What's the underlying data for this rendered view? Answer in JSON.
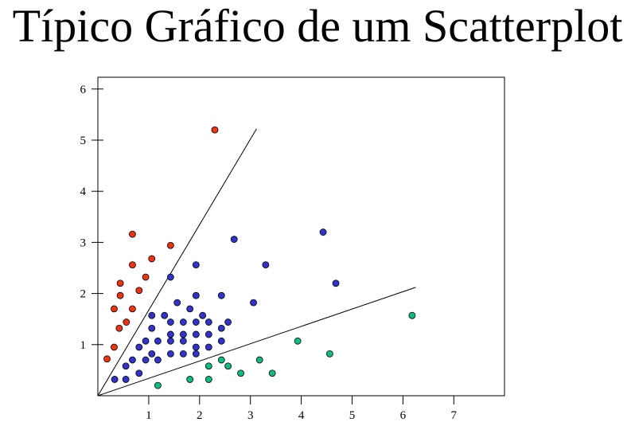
{
  "chart_data": {
    "type": "scatter",
    "title": "Típico Gráfico de um Scatterplot",
    "xlabel": "",
    "ylabel": "",
    "xlim": [
      0,
      8
    ],
    "ylim": [
      0,
      6.2
    ],
    "x_ticks": [
      1,
      2,
      3,
      4,
      5,
      6,
      7
    ],
    "y_ticks": [
      1,
      2,
      3,
      4,
      5,
      6
    ],
    "grid": false,
    "legend": "none",
    "series": [
      {
        "color": "#ee3311",
        "points": [
          [
            0.18,
            0.72
          ],
          [
            0.32,
            0.95
          ],
          [
            0.32,
            1.7
          ],
          [
            0.44,
            1.96
          ],
          [
            0.44,
            2.2
          ],
          [
            0.42,
            1.32
          ],
          [
            0.56,
            1.44
          ],
          [
            0.68,
            1.7
          ],
          [
            0.68,
            2.56
          ],
          [
            0.68,
            3.16
          ],
          [
            0.81,
            2.06
          ],
          [
            0.94,
            2.32
          ],
          [
            1.06,
            2.68
          ],
          [
            1.43,
            2.94
          ],
          [
            2.3,
            5.2
          ]
        ]
      },
      {
        "color": "#3333cc",
        "points": [
          [
            0.33,
            0.32
          ],
          [
            0.55,
            0.32
          ],
          [
            0.55,
            0.58
          ],
          [
            0.68,
            0.7
          ],
          [
            0.81,
            0.44
          ],
          [
            0.81,
            0.95
          ],
          [
            0.94,
            0.7
          ],
          [
            0.94,
            1.07
          ],
          [
            1.06,
            0.82
          ],
          [
            1.06,
            1.32
          ],
          [
            1.06,
            1.57
          ],
          [
            1.18,
            0.7
          ],
          [
            1.18,
            1.07
          ],
          [
            1.31,
            1.57
          ],
          [
            1.43,
            0.82
          ],
          [
            1.43,
            1.07
          ],
          [
            1.43,
            1.2
          ],
          [
            1.43,
            1.44
          ],
          [
            1.43,
            2.32
          ],
          [
            1.56,
            1.82
          ],
          [
            1.68,
            0.82
          ],
          [
            1.68,
            1.07
          ],
          [
            1.68,
            1.2
          ],
          [
            1.68,
            1.44
          ],
          [
            1.81,
            1.7
          ],
          [
            1.93,
            0.82
          ],
          [
            1.93,
            0.95
          ],
          [
            1.93,
            1.2
          ],
          [
            1.93,
            1.44
          ],
          [
            1.93,
            1.96
          ],
          [
            1.93,
            2.56
          ],
          [
            2.06,
            1.57
          ],
          [
            2.18,
            0.95
          ],
          [
            2.18,
            1.2
          ],
          [
            2.18,
            1.44
          ],
          [
            2.43,
            1.07
          ],
          [
            2.43,
            1.32
          ],
          [
            2.43,
            1.96
          ],
          [
            2.56,
            1.44
          ],
          [
            2.68,
            3.06
          ],
          [
            3.06,
            1.82
          ],
          [
            3.3,
            2.56
          ],
          [
            4.43,
            3.2
          ],
          [
            4.68,
            2.2
          ]
        ]
      },
      {
        "color": "#11bb88",
        "points": [
          [
            1.18,
            0.2
          ],
          [
            1.81,
            0.32
          ],
          [
            2.18,
            0.32
          ],
          [
            2.18,
            0.58
          ],
          [
            2.43,
            0.7
          ],
          [
            2.56,
            0.58
          ],
          [
            2.81,
            0.44
          ],
          [
            3.18,
            0.7
          ],
          [
            3.43,
            0.44
          ],
          [
            3.93,
            1.07
          ],
          [
            4.56,
            0.82
          ],
          [
            6.18,
            1.57
          ]
        ]
      }
    ],
    "reference_lines": [
      {
        "from": [
          0,
          0
        ],
        "to": [
          3.12,
          5.22
        ]
      },
      {
        "from": [
          0,
          0
        ],
        "to": [
          6.25,
          2.12
        ]
      }
    ]
  }
}
